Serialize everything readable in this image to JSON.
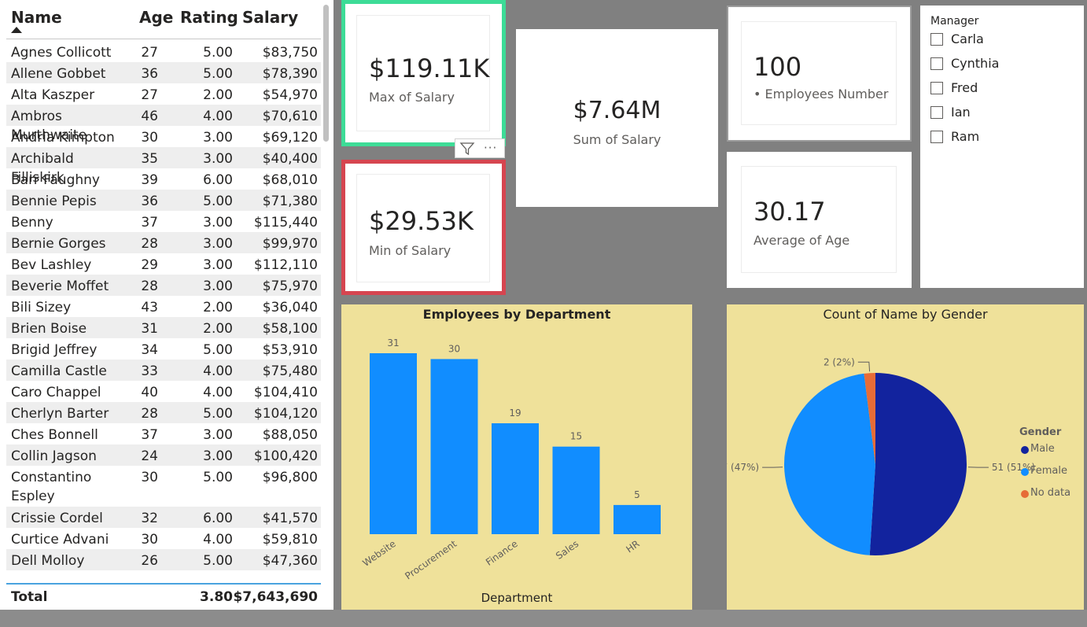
{
  "table": {
    "headers": {
      "name": "Name",
      "age": "Age",
      "rating": "Rating",
      "salary": "Salary"
    },
    "rows": [
      {
        "name": "Agnes Collicott",
        "age": "27",
        "rating": "5.00",
        "salary": "$83,750"
      },
      {
        "name": "Allene Gobbet",
        "age": "36",
        "rating": "5.00",
        "salary": "$78,390"
      },
      {
        "name": "Alta Kaszper",
        "age": "27",
        "rating": "2.00",
        "salary": "$54,970"
      },
      {
        "name": "Ambros Murthwaite",
        "age": "46",
        "rating": "4.00",
        "salary": "$70,610"
      },
      {
        "name": "Andria Kimpton",
        "age": "30",
        "rating": "3.00",
        "salary": "$69,120"
      },
      {
        "name": "Archibald Filliskirk",
        "age": "35",
        "rating": "3.00",
        "salary": "$40,400"
      },
      {
        "name": "Barr Faughny",
        "age": "39",
        "rating": "6.00",
        "salary": "$68,010"
      },
      {
        "name": "Bennie Pepis",
        "age": "36",
        "rating": "5.00",
        "salary": "$71,380"
      },
      {
        "name": "Benny Karolovsky",
        "age": "37",
        "rating": "3.00",
        "salary": "$115,440"
      },
      {
        "name": "Bernie Gorges",
        "age": "28",
        "rating": "3.00",
        "salary": "$99,970"
      },
      {
        "name": "Bev Lashley",
        "age": "29",
        "rating": "3.00",
        "salary": "$112,110"
      },
      {
        "name": "Beverie Moffet",
        "age": "28",
        "rating": "3.00",
        "salary": "$75,970"
      },
      {
        "name": "Bili Sizey",
        "age": "43",
        "rating": "2.00",
        "salary": "$36,040"
      },
      {
        "name": "Brien Boise",
        "age": "31",
        "rating": "2.00",
        "salary": "$58,100"
      },
      {
        "name": "Brigid Jeffrey",
        "age": "34",
        "rating": "5.00",
        "salary": "$53,910"
      },
      {
        "name": "Camilla Castle",
        "age": "33",
        "rating": "4.00",
        "salary": "$75,480"
      },
      {
        "name": "Caro Chappel",
        "age": "40",
        "rating": "4.00",
        "salary": "$104,410"
      },
      {
        "name": "Cherlyn Barter",
        "age": "28",
        "rating": "5.00",
        "salary": "$104,120"
      },
      {
        "name": "Ches Bonnell",
        "age": "37",
        "rating": "3.00",
        "salary": "$88,050"
      },
      {
        "name": "Collin Jagson",
        "age": "24",
        "rating": "3.00",
        "salary": "$100,420"
      },
      {
        "name": "Constantino Espley",
        "age": "30",
        "rating": "5.00",
        "salary": "$96,800"
      },
      {
        "name": "Crissie Cordel",
        "age": "32",
        "rating": "6.00",
        "salary": "$41,570"
      },
      {
        "name": "Curtice Advani",
        "age": "30",
        "rating": "4.00",
        "salary": "$59,810"
      },
      {
        "name": "Dell Molloy",
        "age": "26",
        "rating": "5.00",
        "salary": "$47,360"
      }
    ],
    "total": {
      "label": "Total",
      "rating": "3.80",
      "salary": "$7,643,690"
    }
  },
  "cards": {
    "max_salary": {
      "value": "$119.11K",
      "label": "Max of Salary",
      "border_color": "#3ddc97"
    },
    "min_salary": {
      "value": "$29.53K",
      "label": "Min of Salary",
      "border_color": "#d64550"
    },
    "sum_salary": {
      "value": "$7.64M",
      "label": "Sum of Salary"
    },
    "employees": {
      "value": "100",
      "label": "• Employees Number"
    },
    "avg_age": {
      "value": "30.17",
      "label": "Average of Age"
    }
  },
  "visual_header": {
    "filter_icon": "filter-icon",
    "more_icon": "more-options-icon",
    "more_glyph": "···"
  },
  "slicer": {
    "title": "Manager",
    "items": [
      "Carla",
      "Cynthia",
      "Fred",
      "Ian",
      "Ram"
    ]
  },
  "chart_data": [
    {
      "type": "bar",
      "title": "Employees by Department",
      "xlabel": "Department",
      "ylabel": "",
      "categories": [
        "Website",
        "Procurement",
        "Finance",
        "Sales",
        "HR"
      ],
      "values": [
        31,
        30,
        19,
        15,
        5
      ],
      "ylim": [
        0,
        31
      ],
      "color": "#118dff",
      "data_labels": true
    },
    {
      "type": "pie",
      "title": "Count of Name by Gender",
      "legend_title": "Gender",
      "legend_position": "right",
      "slices": [
        {
          "label": "Male",
          "value": 51,
          "percent": "51%",
          "color": "#12239e"
        },
        {
          "label": "Female",
          "value": 47,
          "percent": "47%",
          "color": "#118dff"
        },
        {
          "label": "No data",
          "value": 2,
          "percent": "2%",
          "color": "#e66c37"
        }
      ]
    }
  ],
  "colors": {
    "canvas": "#808080",
    "chart_background": "#efe19a",
    "table_header_line": "#4aa3df"
  }
}
